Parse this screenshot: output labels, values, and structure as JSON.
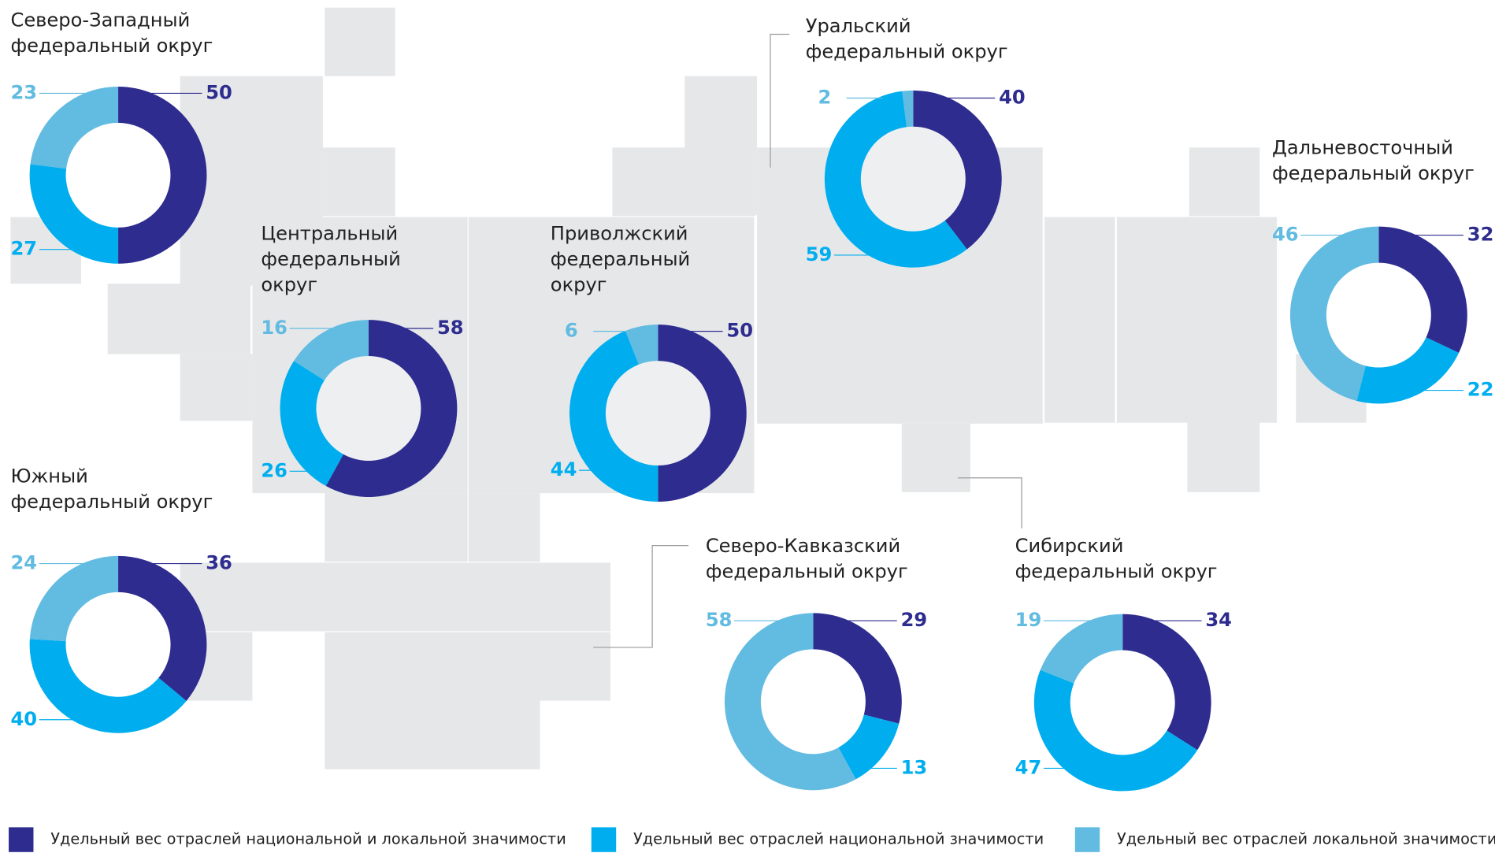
{
  "legend": [
    {
      "name": "Удельный вес отраслей национальной и локальной значимости",
      "color": "#2e2d8f"
    },
    {
      "name": "Удельный вес отраслей национальной значимости",
      "color": "#00aeef"
    },
    {
      "name": "Удельный вес отраслей локальной значимости",
      "color": "#62bbe0"
    }
  ],
  "chart_data": [
    {
      "type": "pie",
      "title": [
        "Северо-Западный",
        "федеральный округ"
      ],
      "values": [
        50,
        27,
        23
      ]
    },
    {
      "type": "pie",
      "title": [
        "Центральный",
        "федеральный",
        "округ"
      ],
      "values": [
        58,
        26,
        16
      ]
    },
    {
      "type": "pie",
      "title": [
        "Приволжский",
        "федеральный",
        "округ"
      ],
      "values": [
        50,
        44,
        6
      ]
    },
    {
      "type": "pie",
      "title": [
        "Уральский",
        "федеральный округ"
      ],
      "values": [
        40,
        59,
        2
      ]
    },
    {
      "type": "pie",
      "title": [
        "Дальневосточный",
        "федеральный округ"
      ],
      "values": [
        32,
        22,
        46
      ]
    },
    {
      "type": "pie",
      "title": [
        "Южный",
        "федеральный округ"
      ],
      "values": [
        36,
        40,
        24
      ]
    },
    {
      "type": "pie",
      "title": [
        "Северо-Кавказский",
        "федеральный округ"
      ],
      "values": [
        29,
        13,
        58
      ]
    },
    {
      "type": "pie",
      "title": [
        "Сибирский",
        "федеральный округ"
      ],
      "values": [
        34,
        47,
        19
      ]
    }
  ]
}
